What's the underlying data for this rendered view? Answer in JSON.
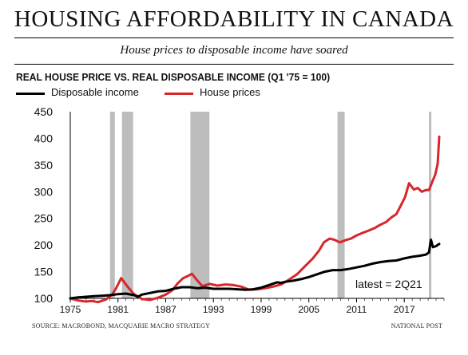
{
  "header": {
    "title": "HOUSING AFFORDABILITY IN CANADA",
    "subtitle": "House prices to disposable income have soared"
  },
  "footer": {
    "source": "SOURCE: MACROBOND, MACQUARIE MACRO STRATEGY",
    "credit": "NATIONAL POST"
  },
  "colors": {
    "income": "#000000",
    "house": "#d9262b",
    "recession": "#bdbdbd"
  },
  "chart_data": {
    "type": "line",
    "title": "REAL HOUSE PRICE VS. REAL DISPOSABLE INCOME (Q1 '75 = 100)",
    "xlim": [
      1975,
      2022
    ],
    "ylim": [
      100,
      450
    ],
    "xticks": [
      "1975",
      "1981",
      "1987",
      "1993",
      "1999",
      "2005",
      "2011",
      "2017"
    ],
    "yticks": [
      "100",
      "150",
      "200",
      "250",
      "300",
      "350",
      "400",
      "450"
    ],
    "annotation": "latest = 2Q21",
    "recessions": [
      [
        1980.0,
        1980.6
      ],
      [
        1981.5,
        1982.9
      ],
      [
        1990.1,
        1992.5
      ],
      [
        2008.6,
        2009.5
      ],
      [
        2020.1,
        2020.4
      ]
    ],
    "series": [
      {
        "name": "Disposable income",
        "x": [
          1975,
          1976,
          1977,
          1978,
          1979,
          1980,
          1981,
          1982,
          1983,
          1983.5,
          1984,
          1985,
          1986,
          1987,
          1988,
          1989,
          1990,
          1991,
          1992,
          1993,
          1994,
          1995,
          1996,
          1997,
          1998,
          1999,
          2000,
          2001,
          2001.5,
          2002,
          2003,
          2004,
          2005,
          2006,
          2007,
          2008,
          2009,
          2010,
          2011,
          2012,
          2013,
          2014,
          2015,
          2016,
          2017,
          2018,
          2019,
          2019.7,
          2020.1,
          2020.35,
          2020.6,
          2021,
          2021.4
        ],
        "values": [
          100,
          102,
          103,
          104,
          105,
          106,
          108,
          109,
          106,
          103,
          107,
          110,
          113,
          114,
          118,
          121,
          121,
          119,
          120,
          118,
          118,
          118,
          117,
          116,
          117,
          120,
          125,
          130,
          129,
          131,
          133,
          136,
          140,
          145,
          150,
          153,
          153,
          155,
          158,
          161,
          165,
          168,
          170,
          171,
          175,
          178,
          180,
          182,
          186,
          210,
          196,
          198,
          202
        ]
      },
      {
        "name": "House prices",
        "x": [
          1975,
          1976,
          1977,
          1977.7,
          1978.5,
          1979.5,
          1980.3,
          1980.8,
          1981.4,
          1982.2,
          1983,
          1984,
          1985,
          1986,
          1987,
          1987.8,
          1988.5,
          1989.2,
          1989.8,
          1990.3,
          1991,
          1991.6,
          1992.5,
          1993.5,
          1994.5,
          1995.5,
          1996.5,
          1997.5,
          1998.5,
          1999.5,
          2000.5,
          2001.5,
          2002.5,
          2003.5,
          2004.5,
          2005.5,
          2006.3,
          2006.9,
          2007.6,
          2008.2,
          2008.9,
          2009.6,
          2010.3,
          2011,
          2011.8,
          2012.5,
          2013.3,
          2014,
          2014.7,
          2015.4,
          2016,
          2016.6,
          2017.1,
          2017.6,
          2018.2,
          2018.7,
          2019.2,
          2019.7,
          2020.1,
          2020.5,
          2020.9,
          2021.2,
          2021.4
        ],
        "values": [
          100,
          96,
          94,
          95,
          93,
          98,
          108,
          120,
          138,
          122,
          108,
          99,
          97,
          101,
          107,
          115,
          128,
          138,
          142,
          146,
          133,
          123,
          127,
          124,
          126,
          125,
          122,
          116,
          117,
          119,
          122,
          126,
          135,
          145,
          160,
          175,
          190,
          205,
          212,
          210,
          205,
          209,
          212,
          218,
          223,
          227,
          232,
          238,
          243,
          252,
          258,
          275,
          290,
          316,
          304,
          307,
          300,
          303,
          303,
          318,
          332,
          352,
          403
        ]
      }
    ]
  }
}
